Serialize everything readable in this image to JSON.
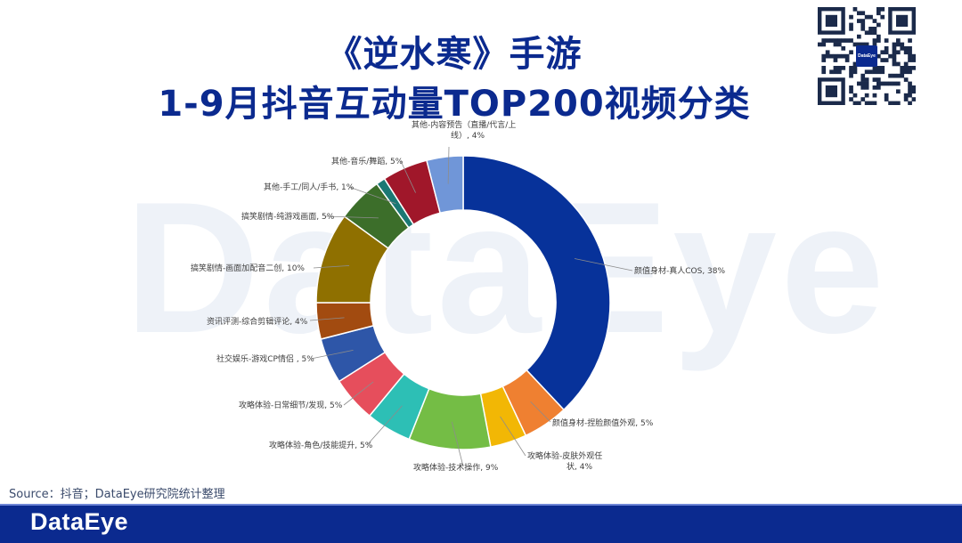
{
  "header": {
    "title_line1": "《逆水寒》手游",
    "title_line2": "1-9月抖音互动量TOP200视频分类"
  },
  "watermark": "DataEye",
  "qr": {
    "logo_text": "DataEye"
  },
  "source": "Source：抖音；DataEye研究院统计整理",
  "footer": {
    "brand": "DataEye",
    "color": "#0b2a8f"
  },
  "chart_data": {
    "type": "pie",
    "donut": true,
    "title": "",
    "slices": [
      {
        "label": "颜值身材-真人COS",
        "value": 38,
        "display": "颜值身材-真人COS, 38%",
        "color": "#07329a"
      },
      {
        "label": "颜值身材-捏脸颜值外观",
        "value": 5,
        "display": "颜值身材-捏脸颜值外观, 5%",
        "color": "#ef8031"
      },
      {
        "label": "攻略体验-皮肤外观任状",
        "value": 4,
        "display_lines": [
          "攻略体验-皮肤外观任",
          "状, 4%"
        ],
        "color": "#f2b705"
      },
      {
        "label": "攻略体验-技术操作",
        "value": 9,
        "display": "攻略体验-技术操作, 9%",
        "color": "#74bd45"
      },
      {
        "label": "攻略体验-角色/技能提升",
        "value": 5,
        "display": "攻略体验-角色/技能提升, 5%",
        "color": "#2dbfb5"
      },
      {
        "label": "攻略体验-日常细节/发现",
        "value": 5,
        "display": "攻略体验-日常细节/发现, 5%",
        "color": "#e64e5c"
      },
      {
        "label": "社交娱乐-游戏CP情侣",
        "value": 5,
        "display": "社交娱乐-游戏CP情侣      , 5%",
        "color": "#2e56a8"
      },
      {
        "label": "资讯评测-综合剪辑评论",
        "value": 4,
        "display": "资讯评测-综合剪辑评论, 4%",
        "color": "#a24b10"
      },
      {
        "label": "搞笑剧情-画面加配音二创",
        "value": 10,
        "display": "搞笑剧情-画面加配音二创, 10%",
        "color": "#8f7000"
      },
      {
        "label": "搞笑剧情-纯游戏画面",
        "value": 5,
        "display": "搞笑剧情-纯游戏画面, 5%",
        "color": "#3c6e2a"
      },
      {
        "label": "其他-手工/同人/手书",
        "value": 1,
        "display": "其他-手工/同人/手书, 1%",
        "color": "#1a7874"
      },
      {
        "label": "其他-音乐/舞蹈",
        "value": 5,
        "display": "其他-音乐/舞蹈, 5%",
        "color": "#a0172a"
      },
      {
        "label": "其他-内容预告（直播/代言/上线）",
        "value": 4,
        "display_lines": [
          "其他-内容预告（直播/代言/上",
          "线）, 4%"
        ],
        "color": "#7096d8"
      }
    ]
  }
}
